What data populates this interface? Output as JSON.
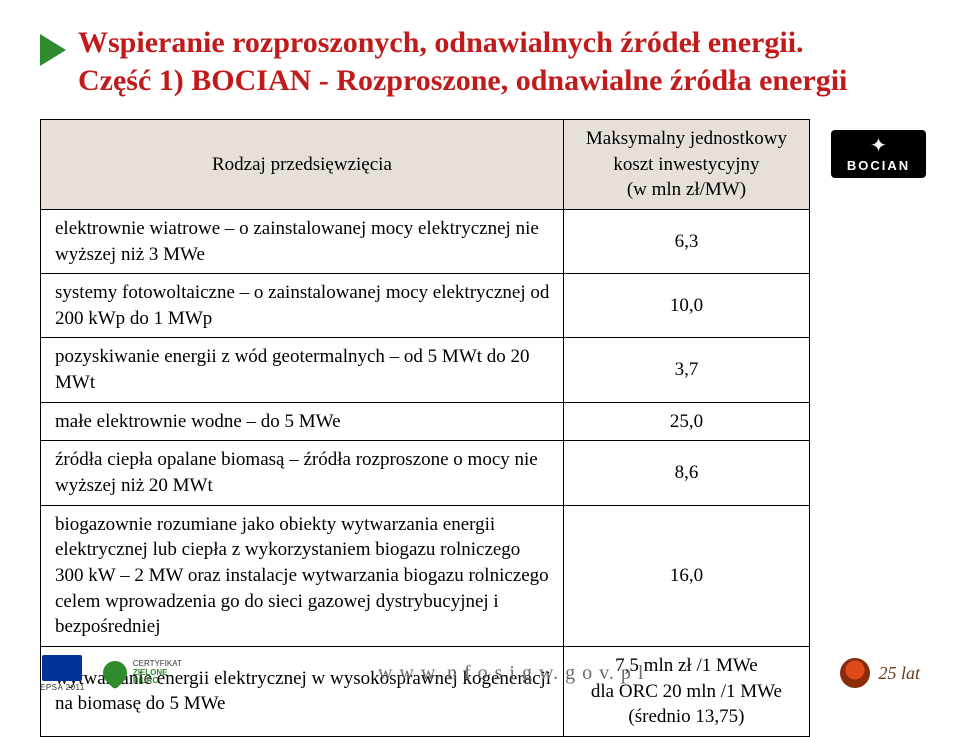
{
  "colors": {
    "title": "#c11a1a",
    "arrow": "#2e8b2e",
    "header_bg": "#e6e0d8",
    "border": "#000000",
    "footer_text": "#6a6a6a"
  },
  "title": {
    "line1": "Wspieranie rozproszonych, odnawialnych źródeł energii.",
    "line2": "Część 1) BOCIAN - Rozproszone, odnawialne źródła energii"
  },
  "table": {
    "headers": {
      "col1": "Rodzaj przedsięwzięcia",
      "col2": "Maksymalny jednostkowy koszt inwestycyjny\n(w mln zł/MW)"
    },
    "rows": [
      {
        "desc": "elektrownie wiatrowe – o zainstalowanej mocy elektrycznej nie wyższej niż 3 MWe",
        "val": "6,3"
      },
      {
        "desc": "systemy fotowoltaiczne – o zainstalowanej mocy elektrycznej od 200 kWp do 1 MWp",
        "val": "10,0"
      },
      {
        "desc": "pozyskiwanie energii z wód geotermalnych – od 5 MWt do 20 MWt",
        "val": "3,7"
      },
      {
        "desc": "małe elektrownie wodne – do 5 MWe",
        "val": "25,0"
      },
      {
        "desc": "źródła ciepła opalane biomasą – źródła rozproszone o mocy nie wyższej niż 20 MWt",
        "val": "8,6"
      },
      {
        "desc": "biogazownie rozumiane jako obiekty wytwarzania energii elektrycznej  lub ciepła z wykorzystaniem biogazu rolniczego 300 kW – 2 MW oraz instalacje  wytwarzania  biogazu rolniczego  celem wprowadzenia go do sieci gazowej dystrybucyjnej i bezpośredniej",
        "val": "16,0"
      },
      {
        "desc": "wytwarzanie energii elektrycznej w wysokosprawnej kogeneracji na biomasę do 5 MWe",
        "val": "7,5 mln zł /1 MWe\ndla ORC 20 mln /1 MWe\n(średnio 13,75)"
      }
    ]
  },
  "logo_right": {
    "label": "BOCIAN"
  },
  "footer": {
    "epsa": "EPSA 2011",
    "cert_line1": "CERTYFIKAT",
    "cert_line2": "ZIELONE",
    "cert_line3": "BIURO",
    "url": "w w w.  n  f o s i g w.  g o v.  p l",
    "years": "25 lat"
  }
}
